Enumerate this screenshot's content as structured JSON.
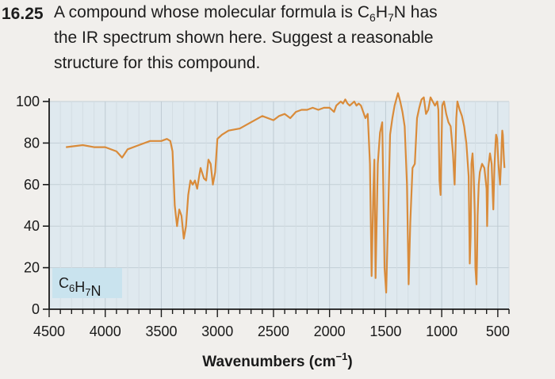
{
  "problem": {
    "number": "16.25",
    "line1_prefix": "A compound whose molecular formula is C",
    "line1_sub1": "6",
    "line1_h": "H",
    "line1_sub2": "7",
    "line1_suffix": "N has",
    "line2": "the IR spectrum shown here. Suggest a reasonable",
    "line3": "structure for this compound."
  },
  "chart_data": {
    "type": "line",
    "title": "",
    "xlabel": "Wavenumbers (cm",
    "xlabel_sup": "−1",
    "xlabel_close": ")",
    "ylabel": "",
    "xlim": [
      4500,
      400
    ],
    "ylim": [
      0,
      100
    ],
    "x_ticks": [
      4500,
      4000,
      3500,
      3000,
      2500,
      2000,
      1500,
      1000,
      500
    ],
    "y_ticks": [
      0,
      20,
      40,
      60,
      80,
      100
    ],
    "grid": true,
    "line_color": "#d98b3a",
    "label_box": {
      "parts": [
        "C",
        "6",
        "H",
        "7",
        "N"
      ],
      "background": "#c9e3ee"
    },
    "series": [
      {
        "values": [
          [
            4350,
            78
          ],
          [
            4200,
            79
          ],
          [
            4100,
            78
          ],
          [
            4000,
            78
          ],
          [
            3900,
            76
          ],
          [
            3850,
            73
          ],
          [
            3800,
            77
          ],
          [
            3700,
            79
          ],
          [
            3600,
            81
          ],
          [
            3500,
            81
          ],
          [
            3450,
            82
          ],
          [
            3420,
            81
          ],
          [
            3400,
            76
          ],
          [
            3380,
            50
          ],
          [
            3360,
            40
          ],
          [
            3340,
            48
          ],
          [
            3320,
            45
          ],
          [
            3300,
            34
          ],
          [
            3280,
            40
          ],
          [
            3260,
            55
          ],
          [
            3240,
            62
          ],
          [
            3220,
            60
          ],
          [
            3200,
            62
          ],
          [
            3180,
            58
          ],
          [
            3160,
            65
          ],
          [
            3150,
            68
          ],
          [
            3120,
            63
          ],
          [
            3100,
            62
          ],
          [
            3080,
            72
          ],
          [
            3060,
            70
          ],
          [
            3040,
            60
          ],
          [
            3020,
            66
          ],
          [
            3000,
            82
          ],
          [
            2960,
            84
          ],
          [
            2900,
            86
          ],
          [
            2800,
            87
          ],
          [
            2700,
            90
          ],
          [
            2600,
            93
          ],
          [
            2500,
            91
          ],
          [
            2450,
            93
          ],
          [
            2400,
            94
          ],
          [
            2350,
            92
          ],
          [
            2300,
            95
          ],
          [
            2250,
            96
          ],
          [
            2200,
            96
          ],
          [
            2150,
            97
          ],
          [
            2100,
            96
          ],
          [
            2050,
            97
          ],
          [
            2000,
            97
          ],
          [
            1980,
            96
          ],
          [
            1960,
            95
          ],
          [
            1940,
            98
          ],
          [
            1920,
            99
          ],
          [
            1900,
            100
          ],
          [
            1880,
            99
          ],
          [
            1860,
            101
          ],
          [
            1840,
            99
          ],
          [
            1820,
            98
          ],
          [
            1800,
            99
          ],
          [
            1780,
            100
          ],
          [
            1760,
            98
          ],
          [
            1740,
            99
          ],
          [
            1720,
            98
          ],
          [
            1700,
            95
          ],
          [
            1680,
            92
          ],
          [
            1660,
            94
          ],
          [
            1640,
            70
          ],
          [
            1625,
            16
          ],
          [
            1610,
            55
          ],
          [
            1600,
            72
          ],
          [
            1590,
            15
          ],
          [
            1570,
            70
          ],
          [
            1550,
            85
          ],
          [
            1530,
            90
          ],
          [
            1520,
            55
          ],
          [
            1510,
            20
          ],
          [
            1495,
            8
          ],
          [
            1480,
            40
          ],
          [
            1460,
            84
          ],
          [
            1440,
            92
          ],
          [
            1420,
            98
          ],
          [
            1400,
            102
          ],
          [
            1390,
            104
          ],
          [
            1370,
            100
          ],
          [
            1350,
            95
          ],
          [
            1330,
            88
          ],
          [
            1310,
            60
          ],
          [
            1295,
            12
          ],
          [
            1280,
            42
          ],
          [
            1260,
            68
          ],
          [
            1240,
            70
          ],
          [
            1220,
            92
          ],
          [
            1200,
            97
          ],
          [
            1180,
            101
          ],
          [
            1160,
            102
          ],
          [
            1140,
            94
          ],
          [
            1120,
            96
          ],
          [
            1100,
            102
          ],
          [
            1080,
            100
          ],
          [
            1060,
            98
          ],
          [
            1040,
            100
          ],
          [
            1030,
            96
          ],
          [
            1020,
            62
          ],
          [
            1010,
            55
          ],
          [
            995,
            98
          ],
          [
            980,
            100
          ],
          [
            960,
            94
          ],
          [
            940,
            90
          ],
          [
            920,
            88
          ],
          [
            900,
            75
          ],
          [
            885,
            60
          ],
          [
            870,
            92
          ],
          [
            860,
            100
          ],
          [
            850,
            98
          ],
          [
            840,
            96
          ],
          [
            820,
            93
          ],
          [
            800,
            88
          ],
          [
            780,
            80
          ],
          [
            760,
            64
          ],
          [
            750,
            22
          ],
          [
            742,
            35
          ],
          [
            735,
            70
          ],
          [
            725,
            75
          ],
          [
            715,
            65
          ],
          [
            705,
            45
          ],
          [
            700,
            20
          ],
          [
            690,
            12
          ],
          [
            685,
            25
          ],
          [
            680,
            45
          ],
          [
            670,
            60
          ],
          [
            660,
            66
          ],
          [
            640,
            70
          ],
          [
            620,
            68
          ],
          [
            600,
            58
          ],
          [
            595,
            40
          ],
          [
            590,
            52
          ],
          [
            585,
            68
          ],
          [
            570,
            75
          ],
          [
            555,
            70
          ],
          [
            545,
            55
          ],
          [
            540,
            48
          ],
          [
            530,
            68
          ],
          [
            520,
            80
          ],
          [
            515,
            84
          ],
          [
            505,
            82
          ],
          [
            495,
            70
          ],
          [
            480,
            60
          ],
          [
            470,
            72
          ],
          [
            465,
            80
          ],
          [
            460,
            86
          ],
          [
            455,
            84
          ],
          [
            445,
            72
          ],
          [
            440,
            68
          ]
        ]
      }
    ]
  }
}
